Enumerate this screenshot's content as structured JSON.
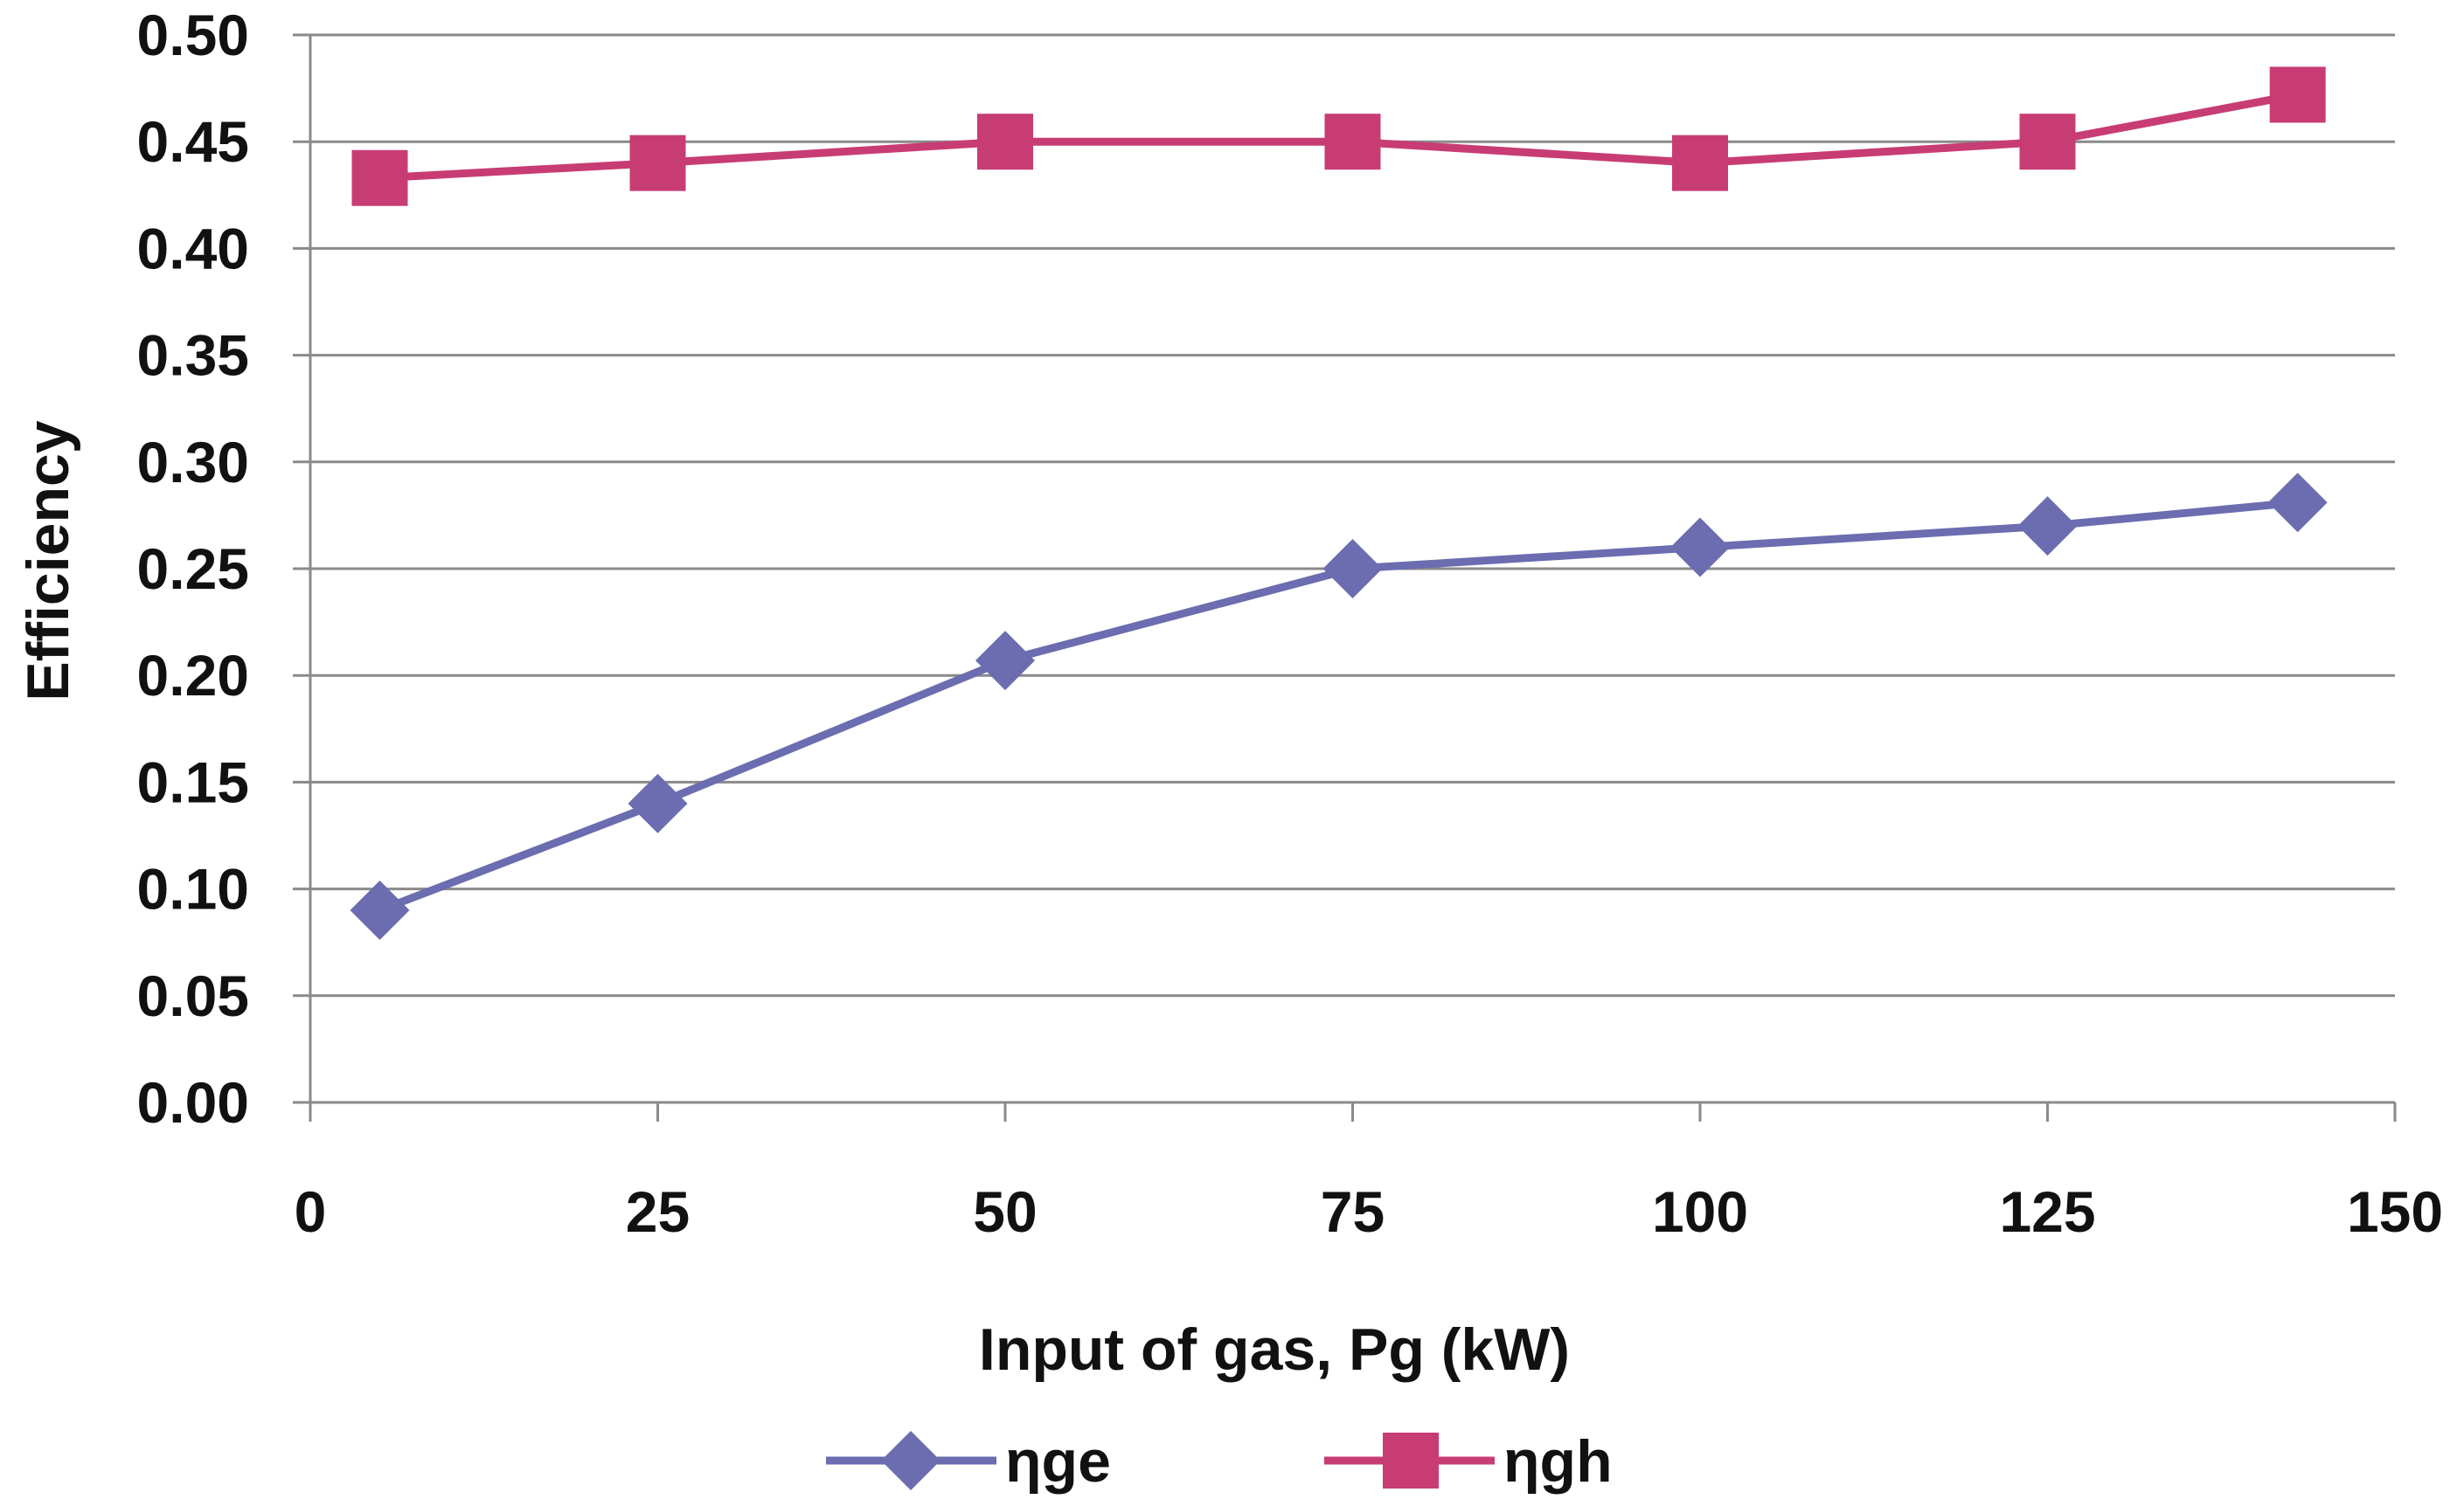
{
  "chart_data": {
    "type": "line",
    "title": "",
    "xlabel": "Input of gas, Pg  (kW)",
    "ylabel": "Efficiency",
    "xlim": [
      0,
      150
    ],
    "ylim": [
      0,
      0.5
    ],
    "x_ticks": [
      "0",
      "25",
      "50",
      "75",
      "100",
      "125",
      "150"
    ],
    "y_ticks": [
      "0.00",
      "0.05",
      "0.10",
      "0.15",
      "0.20",
      "0.25",
      "0.30",
      "0.35",
      "0.40",
      "0.45",
      "0.50"
    ],
    "grid": true,
    "legend_position": "bottom",
    "series": [
      {
        "name": "ηge",
        "color": "#6B6DB0",
        "marker": "diamond",
        "x": [
          5,
          25,
          50,
          75,
          100,
          125,
          143
        ],
        "y": [
          0.09,
          0.14,
          0.207,
          0.25,
          0.26,
          0.27,
          0.281
        ]
      },
      {
        "name": "ηgh",
        "color": "#C83C74",
        "marker": "square",
        "x": [
          5,
          25,
          50,
          75,
          100,
          125,
          143
        ],
        "y": [
          0.433,
          0.44,
          0.45,
          0.45,
          0.44,
          0.45,
          0.472
        ]
      }
    ]
  }
}
